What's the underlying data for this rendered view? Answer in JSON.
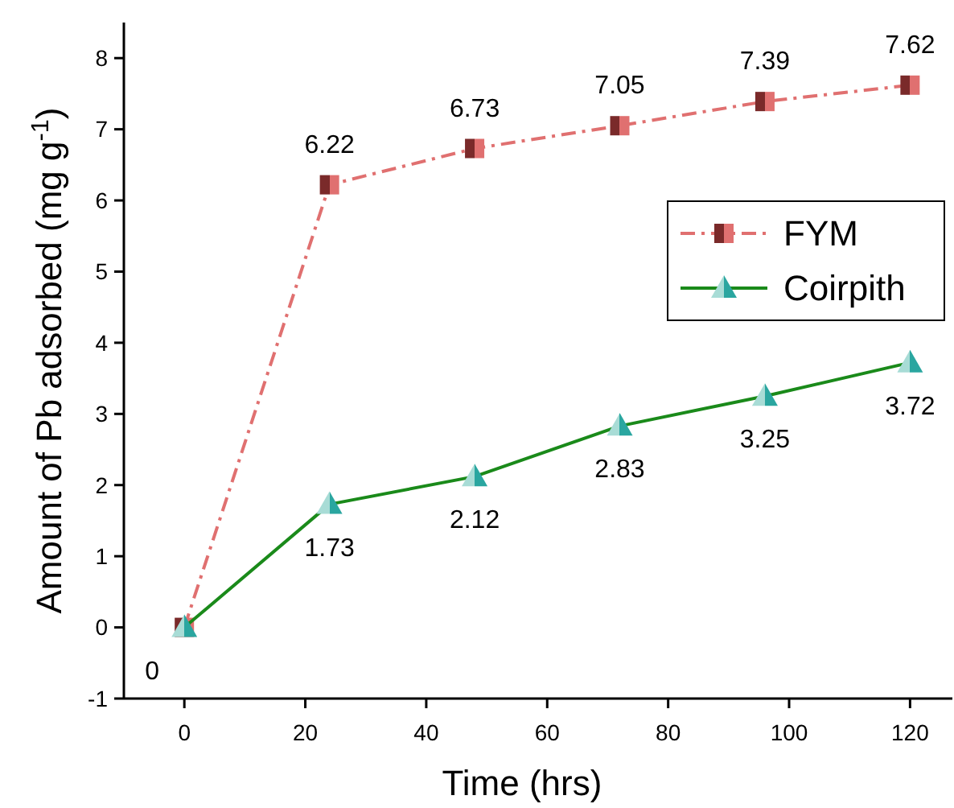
{
  "chart_data": {
    "type": "line",
    "xlabel": "Time (hrs)",
    "ylabel": "Amount of Pb adsorbed (mg g$^{-1}$)",
    "x": [
      0,
      24,
      48,
      72,
      96,
      120
    ],
    "series": [
      {
        "name": "FYM",
        "color": "#e07070",
        "marker": "square",
        "line_style": "dashed",
        "values": [
          0,
          6.22,
          6.73,
          7.05,
          7.39,
          7.62
        ],
        "value_labels": [
          null,
          "6.22",
          "6.73",
          "7.05",
          "7.39",
          "7.62"
        ]
      },
      {
        "name": "Coirpith",
        "color": "#1a8a1a",
        "marker": "triangle",
        "line_style": "solid",
        "values": [
          0,
          1.73,
          2.12,
          2.83,
          3.25,
          3.72
        ],
        "value_labels": [
          "0",
          "1.73",
          "2.12",
          "2.83",
          "3.25",
          "3.72"
        ]
      }
    ],
    "xlim": [
      -10,
      127
    ],
    "xticks": [
      0,
      20,
      40,
      60,
      80,
      100,
      120
    ],
    "ylim": [
      -1,
      8.5
    ],
    "yticks": [
      -1,
      0,
      1,
      2,
      3,
      4,
      5,
      6,
      7,
      8
    ],
    "legend": "right",
    "grid": false
  }
}
